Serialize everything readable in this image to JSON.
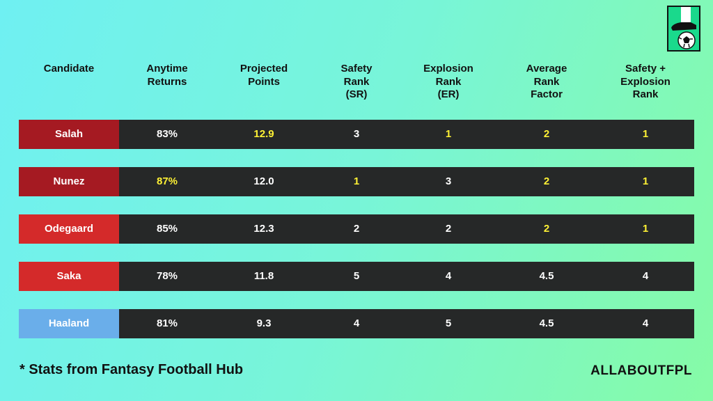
{
  "headers": [
    "Candidate",
    "Anytime\nReturns",
    "Projected\nPoints",
    "Safety\nRank\n(SR)",
    "Explosion\nRank\n(ER)",
    "Average\nRank\nFactor",
    "Safety +\nExplosion\nRank"
  ],
  "rows": [
    {
      "name": "Salah",
      "color": "#a51a22",
      "cells": [
        "83%",
        "12.9",
        "3",
        "1",
        "2",
        "1"
      ],
      "highlight": [
        false,
        true,
        false,
        true,
        true,
        true
      ]
    },
    {
      "name": "Nunez",
      "color": "#a51a22",
      "cells": [
        "87%",
        "12.0",
        "1",
        "3",
        "2",
        "1"
      ],
      "highlight": [
        true,
        false,
        true,
        false,
        true,
        true
      ]
    },
    {
      "name": "Odegaard",
      "color": "#d42a2a",
      "cells": [
        "85%",
        "12.3",
        "2",
        "2",
        "2",
        "1"
      ],
      "highlight": [
        false,
        false,
        false,
        false,
        true,
        true
      ]
    },
    {
      "name": "Saka",
      "color": "#d42a2a",
      "cells": [
        "78%",
        "11.8",
        "5",
        "4",
        "4.5",
        "4"
      ],
      "highlight": [
        false,
        false,
        false,
        false,
        false,
        false
      ]
    },
    {
      "name": "Haaland",
      "color": "#6aaeea",
      "cells": [
        "81%",
        "9.3",
        "4",
        "5",
        "4.5",
        "4"
      ],
      "highlight": [
        false,
        false,
        false,
        false,
        false,
        false
      ]
    }
  ],
  "footnote": "*  Stats from Fantasy Football Hub",
  "brand": "ALLABOUTFPL",
  "logo_icon": "football-boot-ball-icon"
}
